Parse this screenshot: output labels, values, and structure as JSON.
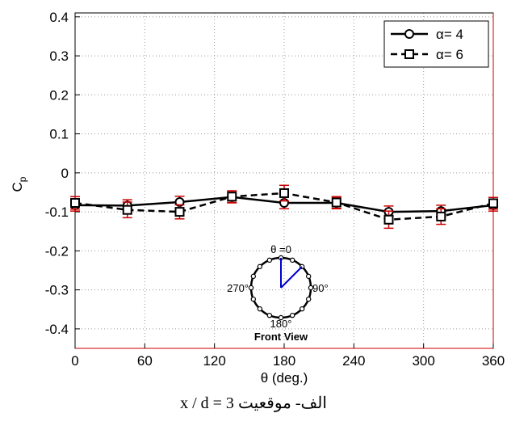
{
  "chart_data": {
    "type": "line",
    "xlabel": "θ (deg.)",
    "ylabel_main": "C",
    "ylabel_sub": "p",
    "xlim": [
      0,
      360
    ],
    "ylim": [
      -0.45,
      0.41
    ],
    "xticks": [
      0,
      60,
      120,
      180,
      240,
      300,
      360
    ],
    "yticks": [
      0.4,
      0.3,
      0.2,
      0.1,
      0,
      -0.1,
      -0.2,
      -0.3,
      -0.4
    ],
    "grid": true,
    "legend_position": "top-right",
    "x": [
      0,
      45,
      90,
      135,
      180,
      225,
      270,
      315,
      360
    ],
    "series": [
      {
        "name": "α= 4",
        "marker": "circle",
        "line": "solid",
        "values": [
          -0.083,
          -0.084,
          -0.075,
          -0.062,
          -0.077,
          -0.077,
          -0.1,
          -0.098,
          -0.083
        ],
        "err": [
          0.015,
          0.015,
          0.015,
          0.015,
          0.015,
          0.015,
          0.015,
          0.015,
          0.015
        ]
      },
      {
        "name": "α= 6",
        "marker": "square",
        "line": "dashed",
        "values": [
          -0.077,
          -0.095,
          -0.1,
          -0.061,
          -0.052,
          -0.076,
          -0.12,
          -0.112,
          -0.078
        ],
        "err": [
          0.016,
          0.02,
          0.018,
          0.015,
          0.02,
          0.015,
          0.022,
          0.02,
          0.015
        ]
      }
    ],
    "colors": {
      "line": "#000000",
      "errorbar": "#cc0000",
      "grid": "#999999",
      "inset_angle": "#0000cc"
    },
    "inset": {
      "label_top": "θ =0",
      "label_left": "270°",
      "label_right": "90°",
      "label_bottom": "180°",
      "title": "Front View"
    }
  },
  "caption": "الف- موقعیت  x / d = 3"
}
